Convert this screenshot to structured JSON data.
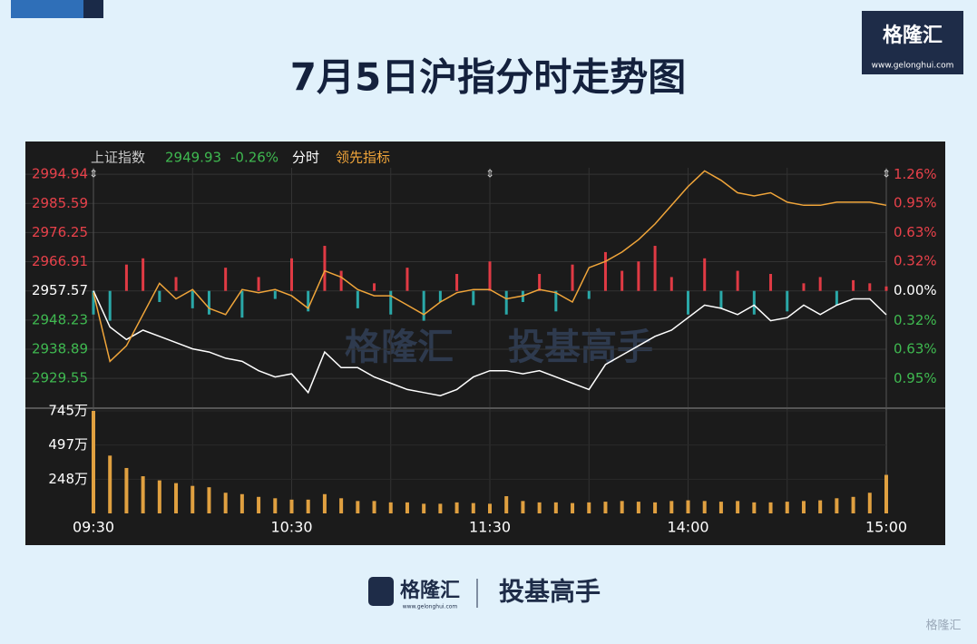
{
  "title": "7月5日沪指分时走势图",
  "logo": {
    "name": "格隆汇",
    "url": "www.gelonghui.com"
  },
  "footer": {
    "brand": "格隆汇",
    "url": "www.gelonghui.com",
    "slogan": "投基高手",
    "corner_mark": "格隆汇"
  },
  "watermark": {
    "brand": "格隆汇",
    "slogan": "投基高手"
  },
  "header": {
    "index_name": "上证指数",
    "last_price": 2949.93,
    "change": "-0.26%",
    "mode": "分时"
  },
  "chart_data": [
    {
      "type": "line",
      "x": [
        0,
        5,
        10,
        15,
        20,
        25,
        30,
        35,
        40,
        45,
        50,
        55,
        60,
        65,
        70,
        75,
        80,
        85,
        90,
        95,
        100,
        105,
        110,
        115,
        120,
        125,
        130,
        135,
        140,
        145,
        150,
        155,
        160,
        165,
        170,
        175,
        180,
        185,
        190,
        195,
        200,
        205,
        210,
        215,
        220,
        225,
        230,
        235,
        240
      ],
      "xlim": [
        0,
        240
      ],
      "xticks": [
        {
          "value": 0,
          "label": "09:30"
        },
        {
          "value": 60,
          "label": "10:30"
        },
        {
          "value": 120,
          "label": "11:30"
        },
        {
          "value": 180,
          "label": "14:00"
        },
        {
          "value": 240,
          "label": "15:00"
        }
      ],
      "xgrid": [
        30,
        90,
        150,
        210
      ],
      "ylim": [
        2920,
        2997
      ],
      "yticks": [
        2994.94,
        2985.59,
        2976.25,
        2966.91,
        2957.57,
        2948.23,
        2938.89,
        2929.55
      ],
      "y2lim": [
        -1.27,
        1.333
      ],
      "y2ticks": [
        {
          "value": 1.26,
          "label": "1.26%"
        },
        {
          "value": 0.95,
          "label": "0.95%"
        },
        {
          "value": 0.63,
          "label": "0.63%"
        },
        {
          "value": 0.32,
          "label": "0.32%"
        },
        {
          "value": 0,
          "label": "0.00%"
        },
        {
          "value": -0.32,
          "label": "0.32%"
        },
        {
          "value": -0.63,
          "label": "0.63%"
        },
        {
          "value": -0.95,
          "label": "0.95%"
        }
      ],
      "baseline": 2957.57,
      "up_color": "#e8414a",
      "down_color": "#3fb950",
      "flat_color": "#ffffff",
      "grid": true,
      "series": [
        {
          "name": "分时",
          "color": "#ffffff",
          "values": [
            2957.6,
            2946,
            2942,
            2945,
            2943,
            2941,
            2939,
            2938,
            2936,
            2935,
            2932,
            2930,
            2931,
            2925,
            2938,
            2933,
            2933,
            2930,
            2928,
            2926,
            2925,
            2924,
            2926,
            2930,
            2932,
            2932,
            2931,
            2932,
            2930,
            2928,
            2926,
            2934,
            2937,
            2940,
            2943,
            2945,
            2949,
            2953,
            2952,
            2950,
            2953,
            2948,
            2949,
            2953,
            2950,
            2953,
            2955,
            2955,
            2949.93
          ]
        },
        {
          "name": "领先指标",
          "color": "#f0a53a",
          "values": [
            2957,
            2935,
            2940,
            2950,
            2960,
            2955,
            2958,
            2952,
            2950,
            2958,
            2957,
            2958,
            2956,
            2952,
            2964,
            2962,
            2958,
            2956,
            2956,
            2953,
            2950,
            2954,
            2957,
            2958,
            2958,
            2955,
            2956,
            2958,
            2957,
            2954,
            2965,
            2967,
            2970,
            2974,
            2979,
            2985,
            2991,
            2996,
            2993,
            2989,
            2988,
            2989,
            2986,
            2985,
            2985,
            2986,
            2986,
            2986,
            2985
          ]
        }
      ],
      "bars": {
        "up_color": "#e03a44",
        "down_color": "#2aa8a8",
        "values": [
          2950,
          2948,
          2966,
          2968,
          2954,
          2962,
          2952,
          2950,
          2965,
          2949,
          2962,
          2955,
          2968,
          2951,
          2972,
          2964,
          2952,
          2960,
          2950,
          2965,
          2948,
          2954,
          2963,
          2953,
          2967,
          2950,
          2954,
          2963,
          2951,
          2966,
          2955,
          2970,
          2964,
          2967,
          2972,
          2962,
          2950,
          2968,
          2952,
          2964,
          2950,
          2963,
          2951,
          2960,
          2962,
          2953,
          2961,
          2960,
          2959
        ]
      }
    },
    {
      "type": "bar",
      "color": "#e0a040",
      "ylim": [
        0,
        745
      ],
      "yticks": [
        {
          "value": 745,
          "label": "745万"
        },
        {
          "value": 497,
          "label": "497万"
        },
        {
          "value": 248,
          "label": "248万"
        }
      ],
      "values": [
        745,
        420,
        330,
        270,
        240,
        220,
        200,
        190,
        150,
        140,
        120,
        110,
        100,
        100,
        140,
        110,
        90,
        90,
        80,
        80,
        70,
        70,
        80,
        75,
        70,
        125,
        90,
        80,
        80,
        75,
        80,
        85,
        90,
        85,
        80,
        90,
        95,
        90,
        85,
        90,
        80,
        80,
        85,
        90,
        95,
        110,
        120,
        150,
        280
      ]
    }
  ]
}
